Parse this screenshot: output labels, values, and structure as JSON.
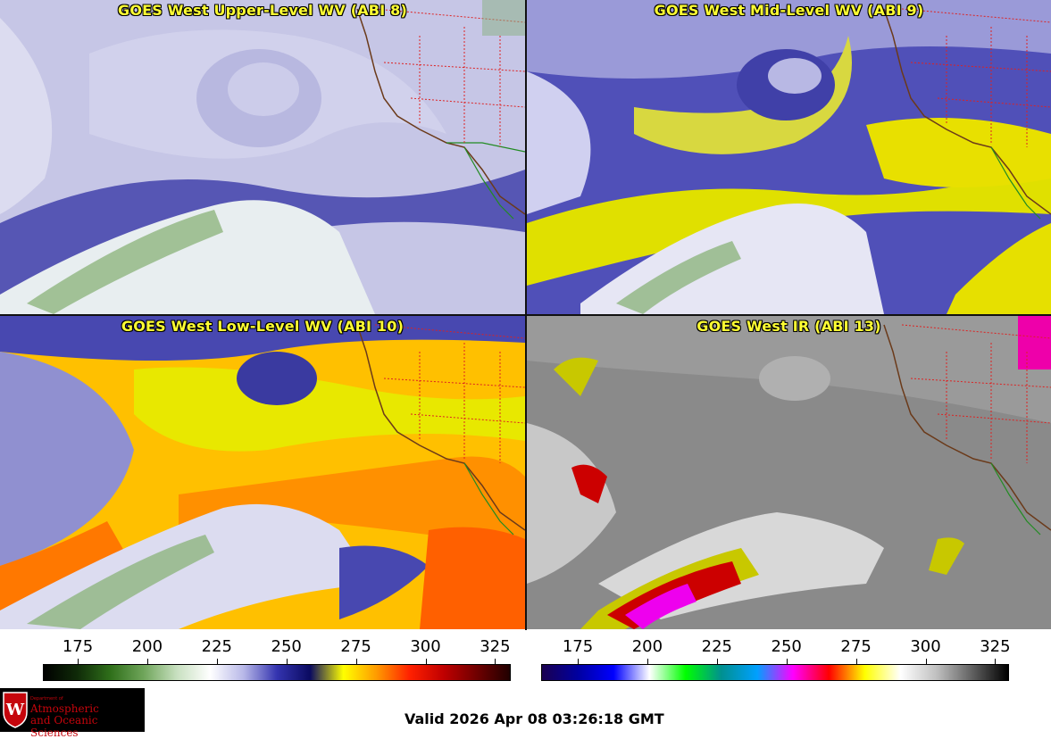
{
  "panels": [
    {
      "title": "GOES West Upper-Level WV (ABI 8)"
    },
    {
      "title": "GOES West Mid-Level WV (ABI 9)"
    },
    {
      "title": "GOES West Low-Level WV (ABI 10)"
    },
    {
      "title": "GOES West IR (ABI 13)"
    }
  ],
  "colorbars": {
    "wv": {
      "ticks": [
        "175",
        "200",
        "225",
        "250",
        "275",
        "300",
        "325"
      ],
      "colors": [
        "#000000",
        "#0f2a08",
        "#2f6f1a",
        "#6fa55a",
        "#c8e0c0",
        "#ffffff",
        "#b8b8e8",
        "#3434b0",
        "#0a0a60",
        "#ffff00",
        "#ff9a00",
        "#ff2000",
        "#c00000",
        "#700000",
        "#200000"
      ]
    },
    "ir": {
      "ticks": [
        "175",
        "200",
        "225",
        "250",
        "275",
        "300",
        "325"
      ],
      "colors": [
        "#1a0050",
        "#0000a0",
        "#0000ff",
        "#ffffff",
        "#00ff00",
        "#009090",
        "#00a0ff",
        "#ff00ff",
        "#ff0000",
        "#ffff00",
        "#ffffff",
        "#c0c0c0",
        "#606060",
        "#000000"
      ]
    }
  },
  "valid_text": "Valid 2026 Apr 08 03:26:18 GMT",
  "logo": {
    "dept": "Department of",
    "line1": "Atmospheric",
    "line2": "and Oceanic Sciences",
    "crest_letter": "W"
  },
  "colors": {
    "title": "#ffff33",
    "logo_red": "#c5050c"
  }
}
